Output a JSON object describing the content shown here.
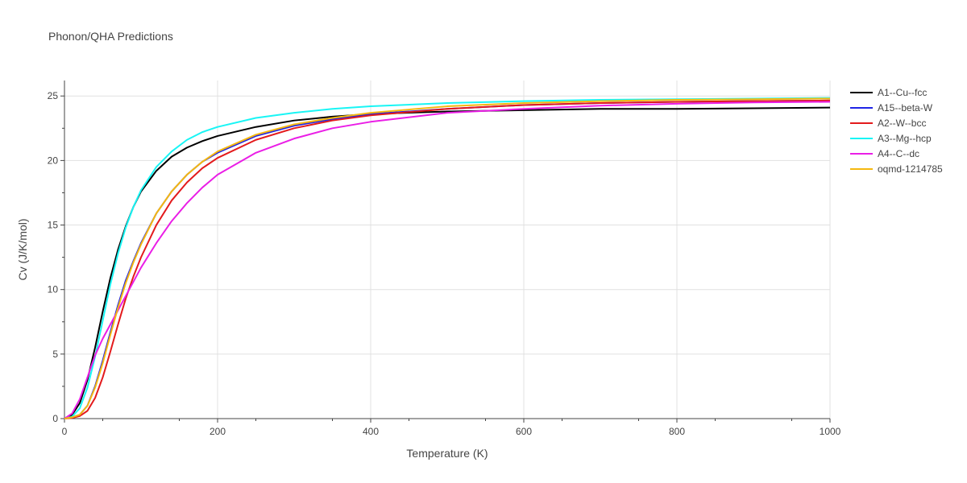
{
  "chart_data": {
    "type": "line",
    "title": "Phonon/QHA Predictions",
    "xlabel": "Temperature (K)",
    "ylabel": "Cv (J/K/mol)",
    "xlim": [
      0,
      1000
    ],
    "ylim": [
      0,
      26.2
    ],
    "x_ticks": [
      0,
      200,
      400,
      600,
      800,
      1000
    ],
    "y_ticks": [
      0,
      5,
      10,
      15,
      20,
      25
    ],
    "grid": true,
    "legend_position": "right",
    "series": [
      {
        "name": "A1--Cu--fcc",
        "color": "#000000",
        "x": [
          0,
          10,
          20,
          30,
          40,
          50,
          60,
          70,
          80,
          90,
          100,
          120,
          140,
          160,
          180,
          200,
          250,
          300,
          350,
          400,
          500,
          600,
          700,
          800,
          900,
          1000
        ],
        "y": [
          0,
          0.3,
          1.2,
          3.0,
          5.5,
          8.3,
          10.9,
          13.1,
          14.9,
          16.4,
          17.6,
          19.2,
          20.3,
          21.0,
          21.5,
          21.9,
          22.6,
          23.1,
          23.4,
          23.6,
          23.8,
          23.9,
          24.0,
          24.0,
          24.05,
          24.1
        ]
      },
      {
        "name": "A15--beta-W",
        "color": "#1f24e6",
        "x": [
          0,
          10,
          20,
          30,
          40,
          50,
          60,
          70,
          80,
          90,
          100,
          120,
          140,
          160,
          180,
          200,
          250,
          300,
          350,
          400,
          500,
          600,
          700,
          800,
          900,
          1000
        ],
        "y": [
          0,
          0.1,
          0.3,
          1.0,
          2.5,
          4.5,
          6.7,
          8.8,
          10.7,
          12.2,
          13.6,
          15.9,
          17.6,
          18.9,
          19.9,
          20.6,
          21.9,
          22.7,
          23.2,
          23.6,
          24.0,
          24.3,
          24.45,
          24.55,
          24.6,
          24.65
        ]
      },
      {
        "name": "A2--W--bcc",
        "color": "#e31a1c",
        "x": [
          0,
          10,
          20,
          30,
          40,
          50,
          60,
          70,
          80,
          90,
          100,
          120,
          140,
          160,
          180,
          200,
          250,
          300,
          350,
          400,
          500,
          600,
          700,
          800,
          900,
          1000
        ],
        "y": [
          0,
          0.05,
          0.2,
          0.6,
          1.6,
          3.2,
          5.2,
          7.3,
          9.3,
          11.0,
          12.5,
          15.0,
          16.9,
          18.3,
          19.4,
          20.2,
          21.6,
          22.5,
          23.1,
          23.5,
          24.0,
          24.3,
          24.45,
          24.55,
          24.6,
          24.65
        ]
      },
      {
        "name": "A3--Mg--hcp",
        "color": "#19f5f5",
        "x": [
          0,
          10,
          20,
          30,
          40,
          50,
          60,
          70,
          80,
          90,
          100,
          120,
          140,
          160,
          180,
          200,
          250,
          300,
          350,
          400,
          500,
          600,
          700,
          800,
          900,
          1000
        ],
        "y": [
          0,
          0.15,
          0.8,
          2.4,
          4.8,
          7.6,
          10.4,
          12.8,
          14.8,
          16.4,
          17.7,
          19.5,
          20.7,
          21.6,
          22.2,
          22.6,
          23.3,
          23.7,
          24.0,
          24.2,
          24.45,
          24.6,
          24.7,
          24.75,
          24.8,
          24.85
        ]
      },
      {
        "name": "A4--C--dc",
        "color": "#ea1ee6",
        "x": [
          0,
          10,
          20,
          30,
          40,
          50,
          60,
          70,
          80,
          90,
          100,
          120,
          140,
          160,
          180,
          200,
          250,
          300,
          350,
          400,
          500,
          600,
          700,
          800,
          900,
          1000
        ],
        "y": [
          0,
          0.4,
          1.5,
          3.2,
          4.9,
          6.2,
          7.3,
          8.4,
          9.5,
          10.6,
          11.7,
          13.6,
          15.3,
          16.7,
          17.9,
          18.9,
          20.6,
          21.7,
          22.5,
          23.0,
          23.7,
          24.0,
          24.25,
          24.4,
          24.5,
          24.55
        ]
      },
      {
        "name": "oqmd-1214785",
        "color": "#f5b80f",
        "x": [
          0,
          10,
          20,
          30,
          40,
          50,
          60,
          70,
          80,
          90,
          100,
          120,
          140,
          160,
          180,
          200,
          250,
          300,
          350,
          400,
          500,
          600,
          700,
          800,
          900,
          1000
        ],
        "y": [
          0,
          0.1,
          0.3,
          1.0,
          2.4,
          4.3,
          6.5,
          8.6,
          10.5,
          12.1,
          13.5,
          15.9,
          17.6,
          18.9,
          19.9,
          20.7,
          22.0,
          22.8,
          23.3,
          23.7,
          24.2,
          24.45,
          24.6,
          24.7,
          24.75,
          24.8
        ]
      }
    ]
  }
}
